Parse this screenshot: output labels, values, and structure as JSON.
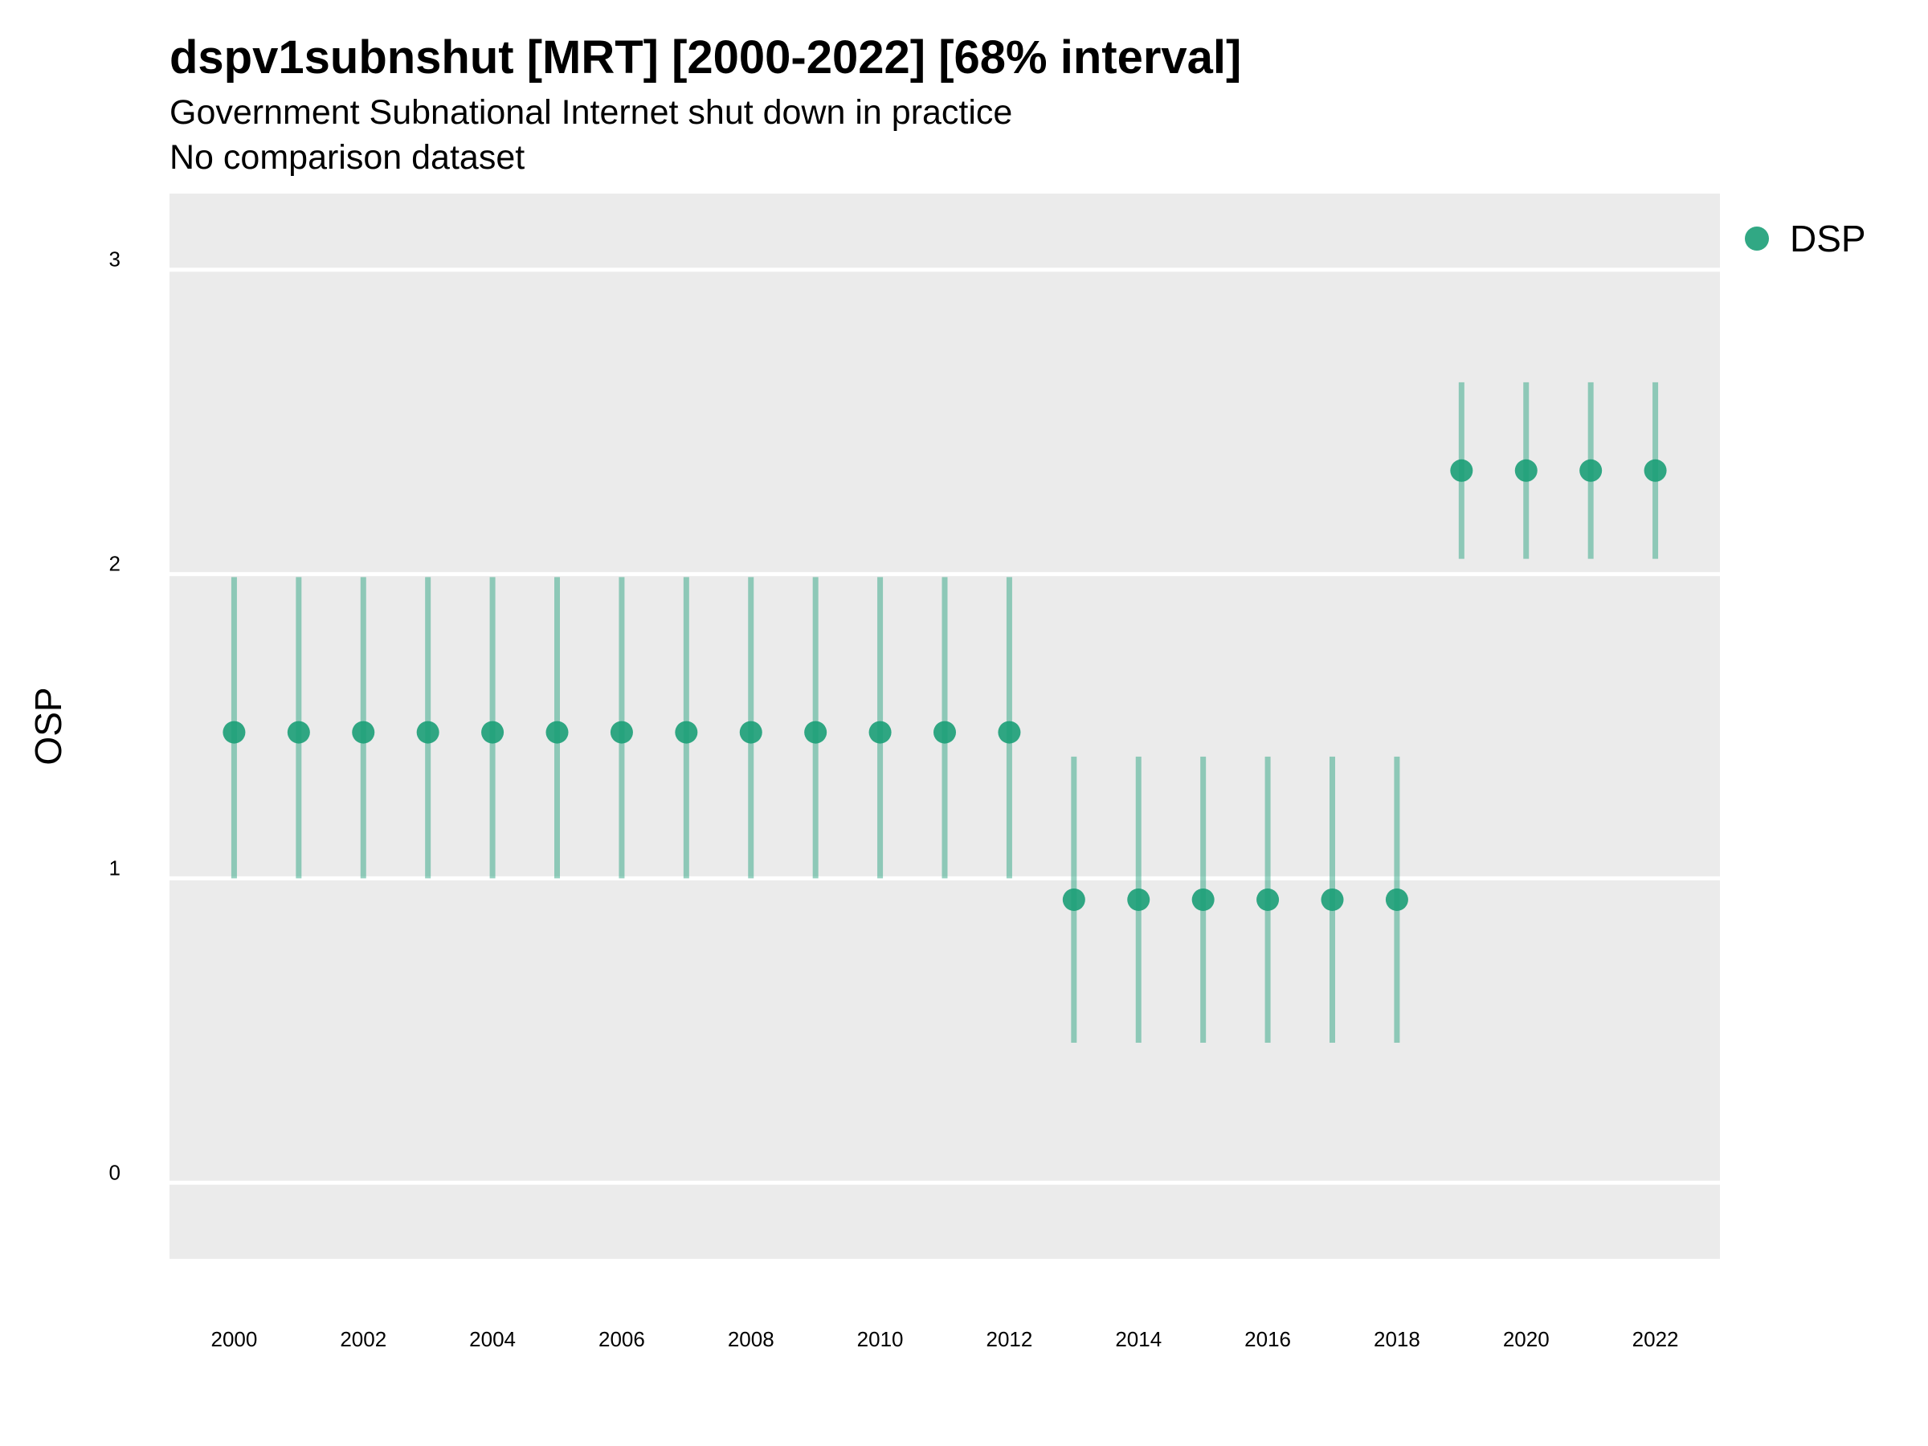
{
  "chart_data": {
    "type": "scatter",
    "title": "dspv1subnshut [MRT] [2000-2022] [68% interval]",
    "subtitle": "Government Subnational Internet shut down in practice",
    "note": "No comparison dataset",
    "ylabel": "OSP",
    "xlabel": "",
    "ylim": [
      -0.25,
      3.25
    ],
    "xlim": [
      1999,
      2023
    ],
    "y_ticks": [
      "0",
      "1",
      "2",
      "3"
    ],
    "x_ticks": [
      "2000",
      "2002",
      "2004",
      "2006",
      "2008",
      "2010",
      "2012",
      "2014",
      "2016",
      "2018",
      "2020",
      "2022"
    ],
    "grid": true,
    "legend_position": "right",
    "series": [
      {
        "name": "DSP",
        "color": "#1b9e77",
        "x": [
          2000,
          2001,
          2002,
          2003,
          2004,
          2005,
          2006,
          2007,
          2008,
          2009,
          2010,
          2011,
          2012,
          2013,
          2014,
          2015,
          2016,
          2017,
          2018,
          2019,
          2020,
          2021,
          2022
        ],
        "y": [
          1.48,
          1.48,
          1.48,
          1.48,
          1.48,
          1.48,
          1.48,
          1.48,
          1.48,
          1.48,
          1.48,
          1.48,
          1.48,
          0.93,
          0.93,
          0.93,
          0.93,
          0.93,
          0.93,
          2.34,
          2.34,
          2.34,
          2.34
        ],
        "lower": [
          1.0,
          1.0,
          1.0,
          1.0,
          1.0,
          1.0,
          1.0,
          1.0,
          1.0,
          1.0,
          1.0,
          1.0,
          1.0,
          0.46,
          0.46,
          0.46,
          0.46,
          0.46,
          0.46,
          2.05,
          2.05,
          2.05,
          2.05
        ],
        "upper": [
          1.99,
          1.99,
          1.99,
          1.99,
          1.99,
          1.99,
          1.99,
          1.99,
          1.99,
          1.99,
          1.99,
          1.99,
          1.99,
          1.4,
          1.4,
          1.4,
          1.4,
          1.4,
          1.4,
          2.63,
          2.63,
          2.63,
          2.63
        ]
      }
    ]
  }
}
